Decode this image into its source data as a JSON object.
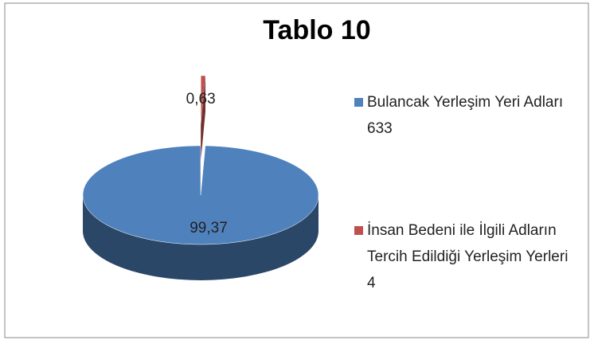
{
  "chart_data": {
    "type": "pie",
    "title": "Tablo 10",
    "categories": [
      "Bulancak Yerleşim Yeri Adları 633",
      "İnsan Bedeni ile İlgili Adların Tercih Edildiği Yerleşim Yerleri 4"
    ],
    "values": [
      99.37,
      0.63
    ],
    "value_labels": [
      "99,37",
      "0,63"
    ],
    "colors": [
      "#4f81bd",
      "#c0504d"
    ],
    "legend": "right"
  }
}
